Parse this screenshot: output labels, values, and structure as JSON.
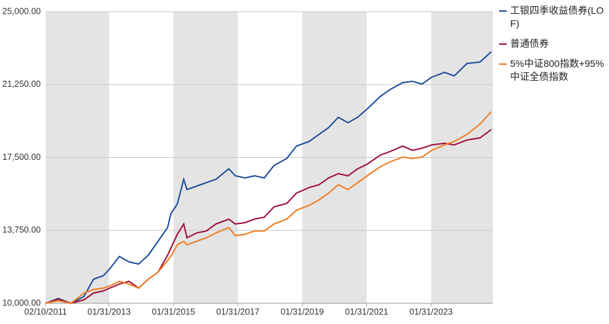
{
  "chart_data": {
    "type": "line",
    "x": [
      2011.11,
      2011.5,
      2011.9,
      2012.3,
      2012.6,
      2012.9,
      2013.1,
      2013.4,
      2013.7,
      2014.0,
      2014.3,
      2014.6,
      2014.9,
      2015.0,
      2015.2,
      2015.4,
      2015.5,
      2015.8,
      2016.1,
      2016.4,
      2016.8,
      2017.0,
      2017.3,
      2017.6,
      2017.9,
      2018.2,
      2018.6,
      2018.9,
      2019.3,
      2019.6,
      2019.9,
      2020.2,
      2020.5,
      2020.8,
      2021.1,
      2021.5,
      2021.8,
      2022.2,
      2022.5,
      2022.8,
      2023.1,
      2023.5,
      2023.8,
      2024.2,
      2024.6,
      2024.95
    ],
    "series": [
      {
        "name": "工银四季收益债券(LOF)",
        "color": "#1f4e9c",
        "values": [
          10000,
          10250,
          10000,
          10350,
          11240,
          11420,
          11770,
          12410,
          12130,
          12020,
          12480,
          13190,
          13900,
          14610,
          15110,
          16380,
          15850,
          16030,
          16210,
          16380,
          16920,
          16560,
          16450,
          16560,
          16450,
          17090,
          17450,
          18090,
          18330,
          18690,
          19040,
          19570,
          19290,
          19570,
          20000,
          20640,
          20990,
          21350,
          21420,
          21280,
          21630,
          21880,
          21700,
          22340,
          22410,
          22940
        ]
      },
      {
        "name": "普通债券",
        "color": "#a0113a",
        "values": [
          10000,
          10210,
          10000,
          10180,
          10530,
          10640,
          10780,
          10990,
          11130,
          10780,
          11240,
          11600,
          12480,
          12840,
          13550,
          14080,
          13370,
          13620,
          13720,
          14080,
          14330,
          14080,
          14150,
          14330,
          14430,
          14960,
          15140,
          15670,
          15960,
          16100,
          16450,
          16670,
          16560,
          16920,
          17160,
          17620,
          17800,
          18090,
          17870,
          17980,
          18150,
          18230,
          18150,
          18400,
          18510,
          18940
        ]
      },
      {
        "name": "5%中证800指数+95%中证全债指数",
        "color": "#ef7d22",
        "values": [
          10000,
          10140,
          10000,
          10530,
          10710,
          10780,
          10890,
          11130,
          10990,
          10780,
          11240,
          11600,
          12200,
          12410,
          13010,
          13190,
          13010,
          13190,
          13370,
          13620,
          13900,
          13480,
          13550,
          13720,
          13720,
          14080,
          14330,
          14790,
          15040,
          15320,
          15670,
          16100,
          15850,
          16210,
          16560,
          17020,
          17270,
          17520,
          17450,
          17520,
          17870,
          18150,
          18330,
          18690,
          19220,
          19860
        ]
      }
    ],
    "xlim": [
      2011.11,
      2025.0
    ],
    "xticks": [
      {
        "value": 2011.11,
        "label": "02/10/2011"
      },
      {
        "value": 2013.08,
        "label": "01/31/2013"
      },
      {
        "value": 2015.08,
        "label": "01/31/2015"
      },
      {
        "value": 2017.08,
        "label": "01/31/2017"
      },
      {
        "value": 2019.08,
        "label": "01/31/2019"
      },
      {
        "value": 2021.08,
        "label": "01/31/2021"
      },
      {
        "value": 2023.08,
        "label": "01/31/2023"
      }
    ],
    "ylim": [
      10000,
      25000
    ],
    "yticks": [
      {
        "value": 10000,
        "label": "10,000.00"
      },
      {
        "value": 13750,
        "label": "13,750.00"
      },
      {
        "value": 17500,
        "label": "17,500.00"
      },
      {
        "value": 21250,
        "label": "21,250.00"
      },
      {
        "value": 25000,
        "label": "25,000.00"
      }
    ],
    "grid": true
  }
}
